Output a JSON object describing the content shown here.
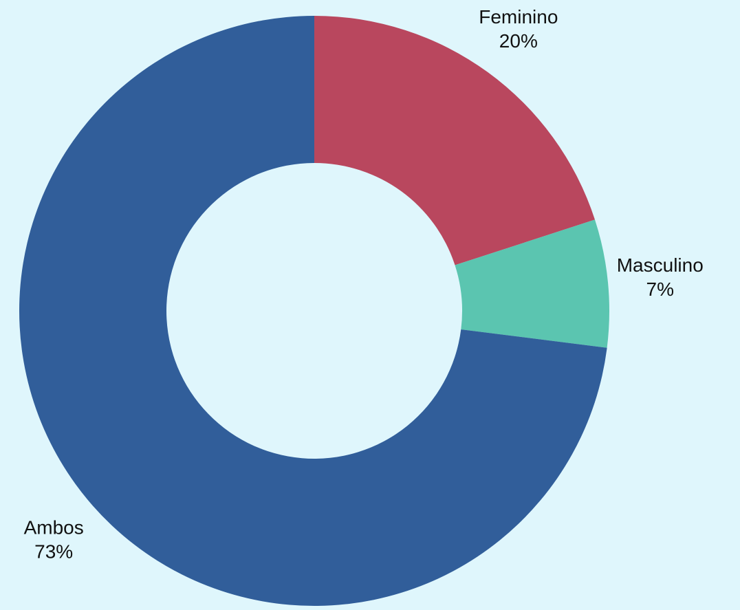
{
  "chart_data": {
    "type": "donut",
    "categories": [
      "Feminino",
      "Masculino",
      "Ambos"
    ],
    "values": [
      20,
      7,
      73
    ],
    "value_labels": [
      "20%",
      "7%",
      "73%"
    ],
    "colors": [
      "#b9475e",
      "#5bc5b0",
      "#315e9a"
    ]
  }
}
